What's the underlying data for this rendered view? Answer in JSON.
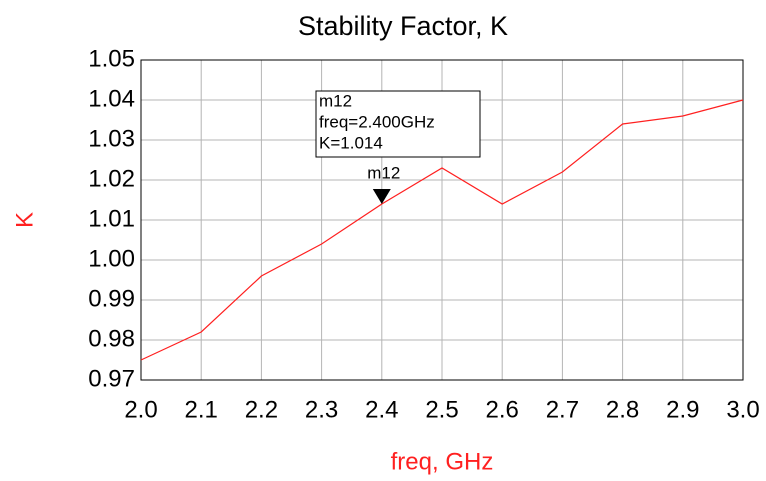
{
  "chart_data": {
    "type": "line",
    "title": "Stability Factor, K",
    "x_label": "freq, GHz",
    "y_label": "K",
    "x": [
      2.0,
      2.1,
      2.2,
      2.3,
      2.4,
      2.5,
      2.6,
      2.7,
      2.8,
      2.9,
      3.0
    ],
    "series": [
      {
        "name": "K",
        "color": "#ff2020",
        "values": [
          0.975,
          0.982,
          0.996,
          1.004,
          1.014,
          1.023,
          1.014,
          1.022,
          1.034,
          1.036,
          1.04
        ]
      }
    ],
    "xlim": [
      2.0,
      3.0
    ],
    "xticks": [
      {
        "value": 2.0,
        "label": "2.0"
      },
      2.1,
      2.2,
      2.3,
      2.4,
      2.5,
      2.6,
      2.7,
      2.8,
      2.9,
      {
        "value": 3.0,
        "label": "3.0"
      }
    ],
    "ylim": [
      0.97,
      1.05
    ],
    "yticks": [
      0.97,
      0.98,
      0.99,
      {
        "value": 1.0,
        "label": "1.00"
      },
      1.01,
      1.02,
      1.03,
      1.04,
      1.05
    ],
    "grid": true,
    "marker": {
      "name": "m12",
      "x": 2.4,
      "value": 1.014,
      "lines": [
        "m12",
        "freq=2.400GHz",
        "K=1.014"
      ]
    }
  }
}
